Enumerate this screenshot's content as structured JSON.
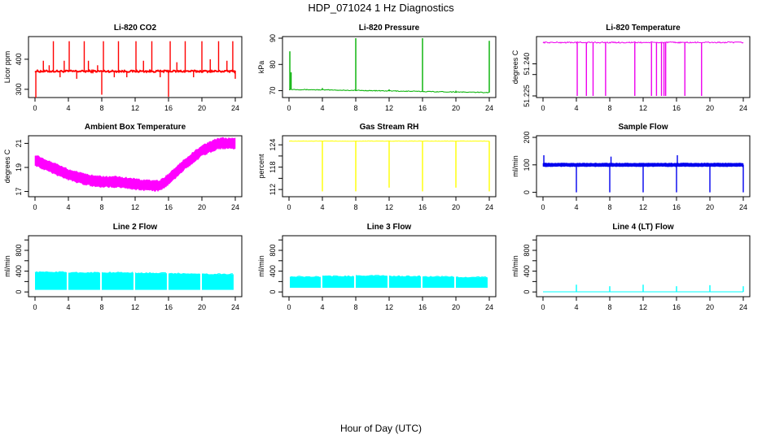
{
  "page": {
    "title": "HDP_071024  1 Hz Diagnostics",
    "xlabel": "Hour of Day (UTC)"
  },
  "chart_data": [
    {
      "type": "line",
      "title": "Li-820 CO2",
      "ylabel": "Licor ppm",
      "color": "#ff0000",
      "xlim": [
        0,
        24
      ],
      "ylim": [
        278,
        470
      ],
      "xticks": [
        0,
        4,
        8,
        12,
        16,
        20,
        24
      ],
      "yticks": [
        300,
        400
      ],
      "baseline": 360,
      "noise": 3,
      "spikes": [
        {
          "x": 0.1,
          "y": 272
        },
        {
          "x": 1.0,
          "y": 395
        },
        {
          "x": 1.7,
          "y": 380
        },
        {
          "x": 2.2,
          "y": 460
        },
        {
          "x": 3.0,
          "y": 340
        },
        {
          "x": 3.5,
          "y": 395
        },
        {
          "x": 4.1,
          "y": 460
        },
        {
          "x": 5.0,
          "y": 335
        },
        {
          "x": 5.9,
          "y": 460
        },
        {
          "x": 6.4,
          "y": 395
        },
        {
          "x": 7.5,
          "y": 380
        },
        {
          "x": 8.0,
          "y": 282
        },
        {
          "x": 8.2,
          "y": 460
        },
        {
          "x": 9.5,
          "y": 340
        },
        {
          "x": 10.0,
          "y": 460
        },
        {
          "x": 11.0,
          "y": 340
        },
        {
          "x": 12.1,
          "y": 460
        },
        {
          "x": 13.0,
          "y": 395
        },
        {
          "x": 14.0,
          "y": 460
        },
        {
          "x": 15.0,
          "y": 340
        },
        {
          "x": 16.0,
          "y": 275
        },
        {
          "x": 16.2,
          "y": 460
        },
        {
          "x": 17.0,
          "y": 390
        },
        {
          "x": 18.0,
          "y": 460
        },
        {
          "x": 19.0,
          "y": 340
        },
        {
          "x": 20.0,
          "y": 460
        },
        {
          "x": 21.0,
          "y": 400
        },
        {
          "x": 22.0,
          "y": 460
        },
        {
          "x": 23.0,
          "y": 395
        },
        {
          "x": 23.7,
          "y": 460
        },
        {
          "x": 24.0,
          "y": 335
        }
      ]
    },
    {
      "type": "line",
      "title": "Li-820 Pressure",
      "ylabel": "kPa",
      "color": "#00b000",
      "xlim": [
        0,
        24
      ],
      "ylim": [
        68,
        90
      ],
      "xticks": [
        0,
        4,
        8,
        12,
        16,
        20,
        24
      ],
      "yticks": [
        70,
        80,
        90
      ],
      "baseline_points": [
        [
          0,
          70.5
        ],
        [
          24,
          69.3
        ]
      ],
      "noise": 0.15,
      "spikes": [
        {
          "x": 0.1,
          "y": 85
        },
        {
          "x": 0.25,
          "y": 77
        },
        {
          "x": 4.0,
          "y": 71
        },
        {
          "x": 8.0,
          "y": 90
        },
        {
          "x": 12.0,
          "y": 70.5
        },
        {
          "x": 16.0,
          "y": 90
        },
        {
          "x": 20.0,
          "y": 70
        },
        {
          "x": 24.0,
          "y": 89
        }
      ]
    },
    {
      "type": "line",
      "title": "Li-820 Temperature",
      "ylabel": "degrees C",
      "color": "#ee00ee",
      "xlim": [
        0,
        24
      ],
      "ylim": [
        51.225,
        51.252
      ],
      "xticks": [
        0,
        4,
        8,
        12,
        16,
        20,
        24
      ],
      "yticks": [
        51.225,
        51.235,
        51.24
      ],
      "ytick_labels": [
        "51.225",
        "",
        "51.240"
      ],
      "baseline": 51.25,
      "noise": 0.0003,
      "spikes": [
        {
          "x": 4.1,
          "y": 51.225
        },
        {
          "x": 5.2,
          "y": 51.225
        },
        {
          "x": 6.0,
          "y": 51.225
        },
        {
          "x": 7.5,
          "y": 51.225
        },
        {
          "x": 11.0,
          "y": 51.225
        },
        {
          "x": 13.0,
          "y": 51.225
        },
        {
          "x": 13.6,
          "y": 51.225
        },
        {
          "x": 14.2,
          "y": 51.225
        },
        {
          "x": 14.5,
          "y": 51.225
        },
        {
          "x": 14.7,
          "y": 51.225
        },
        {
          "x": 17.0,
          "y": 51.225
        },
        {
          "x": 19.0,
          "y": 51.225
        }
      ]
    },
    {
      "type": "area",
      "title": "Ambient Box Temperature",
      "ylabel": "degrees C",
      "color": "#ff00ff",
      "xlim": [
        0,
        24
      ],
      "ylim": [
        16.7,
        21.5
      ],
      "xticks": [
        0,
        4,
        8,
        12,
        16,
        20,
        24
      ],
      "yticks": [
        17,
        19,
        21
      ],
      "band_center": [
        [
          0,
          19.6
        ],
        [
          2,
          19.0
        ],
        [
          4,
          18.4
        ],
        [
          6,
          18.0
        ],
        [
          8,
          17.8
        ],
        [
          10,
          17.8
        ],
        [
          12,
          17.6
        ],
        [
          14,
          17.5
        ],
        [
          15,
          17.5
        ],
        [
          16,
          18.0
        ],
        [
          18,
          19.3
        ],
        [
          20,
          20.4
        ],
        [
          22,
          21.0
        ],
        [
          24,
          21.0
        ]
      ],
      "band_halfwidth": 0.5
    },
    {
      "type": "line",
      "title": "Gas Stream RH",
      "ylabel": "percent",
      "color": "#ffff00",
      "xlim": [
        0,
        24
      ],
      "ylim": [
        110.5,
        126
      ],
      "xticks": [
        0,
        4,
        8,
        12,
        16,
        20,
        24
      ],
      "yticks": [
        112,
        118,
        124
      ],
      "ytick_labels": [
        "112",
        "118",
        "124"
      ],
      "extra_yticks": [
        115,
        121
      ],
      "baseline": 125,
      "noise": 0.05,
      "spikes": [
        {
          "x": 4.0,
          "y": 111.5
        },
        {
          "x": 8.0,
          "y": 111.5
        },
        {
          "x": 12.0,
          "y": 112.5
        },
        {
          "x": 16.0,
          "y": 111.5
        },
        {
          "x": 20.0,
          "y": 112.5
        },
        {
          "x": 24.0,
          "y": 111.5
        }
      ]
    },
    {
      "type": "area",
      "title": "Sample Flow",
      "ylabel": "ml/min",
      "color": "#0000ee",
      "xlim": [
        0,
        24
      ],
      "ylim": [
        -10,
        200
      ],
      "xticks": [
        0,
        4,
        8,
        12,
        16,
        20,
        24
      ],
      "yticks": [
        0,
        100,
        200
      ],
      "band_center": [
        [
          0,
          100
        ],
        [
          24,
          100
        ]
      ],
      "band_halfwidth": 7,
      "spikes": [
        {
          "x": 0.1,
          "y": 135
        },
        {
          "x": 4.0,
          "y": 0
        },
        {
          "x": 8.0,
          "y": 0
        },
        {
          "x": 8.15,
          "y": 130
        },
        {
          "x": 12.0,
          "y": 0
        },
        {
          "x": 16.0,
          "y": 0
        },
        {
          "x": 16.1,
          "y": 135
        },
        {
          "x": 20.0,
          "y": 0
        },
        {
          "x": 24.0,
          "y": 0
        }
      ]
    },
    {
      "type": "area",
      "title": "Line 2 Flow",
      "ylabel": "ml/min",
      "color": "#00ffff",
      "xlim": [
        0,
        24
      ],
      "ylim": [
        -60,
        1050
      ],
      "xticks": [
        0,
        4,
        8,
        12,
        16,
        20,
        24
      ],
      "yticks": [
        0,
        200,
        400,
        600,
        800,
        1000
      ],
      "ytick_labels": [
        "0",
        "",
        "400",
        "",
        "800",
        ""
      ],
      "segments": [
        [
          0,
          3.8,
          40,
          380
        ],
        [
          4.0,
          7.8,
          40,
          370
        ],
        [
          8.0,
          11.8,
          40,
          370
        ],
        [
          12.0,
          15.8,
          40,
          360
        ],
        [
          16.0,
          19.8,
          40,
          350
        ],
        [
          20.0,
          23.8,
          40,
          340
        ]
      ]
    },
    {
      "type": "area",
      "title": "Line 3 Flow",
      "ylabel": "ml/min",
      "color": "#00ffff",
      "xlim": [
        0,
        24
      ],
      "ylim": [
        -60,
        1050
      ],
      "xticks": [
        0,
        4,
        8,
        12,
        16,
        20,
        24
      ],
      "yticks": [
        0,
        200,
        400,
        600,
        800,
        1000
      ],
      "ytick_labels": [
        "0",
        "",
        "400",
        "",
        "800",
        ""
      ],
      "segments": [
        [
          0.1,
          3.8,
          80,
          290
        ],
        [
          4.0,
          7.8,
          80,
          300
        ],
        [
          8.0,
          11.8,
          80,
          310
        ],
        [
          12.0,
          15.8,
          80,
          300
        ],
        [
          16.0,
          19.8,
          80,
          290
        ],
        [
          20.0,
          23.8,
          80,
          280
        ]
      ]
    },
    {
      "type": "line",
      "title": "Line 4 (LT) Flow",
      "ylabel": "ml/min",
      "color": "#00ffff",
      "xlim": [
        0,
        24
      ],
      "ylim": [
        -60,
        1050
      ],
      "xticks": [
        0,
        4,
        8,
        12,
        16,
        20,
        24
      ],
      "yticks": [
        0,
        200,
        400,
        600,
        800,
        1000
      ],
      "ytick_labels": [
        "0",
        "",
        "400",
        "",
        "800",
        ""
      ],
      "baseline": 2,
      "noise": 0,
      "spikes": [
        {
          "x": 4.0,
          "y": 140
        },
        {
          "x": 8.0,
          "y": 110
        },
        {
          "x": 12.0,
          "y": 140
        },
        {
          "x": 16.0,
          "y": 110
        },
        {
          "x": 20.0,
          "y": 130
        },
        {
          "x": 24.0,
          "y": 110
        }
      ]
    }
  ]
}
